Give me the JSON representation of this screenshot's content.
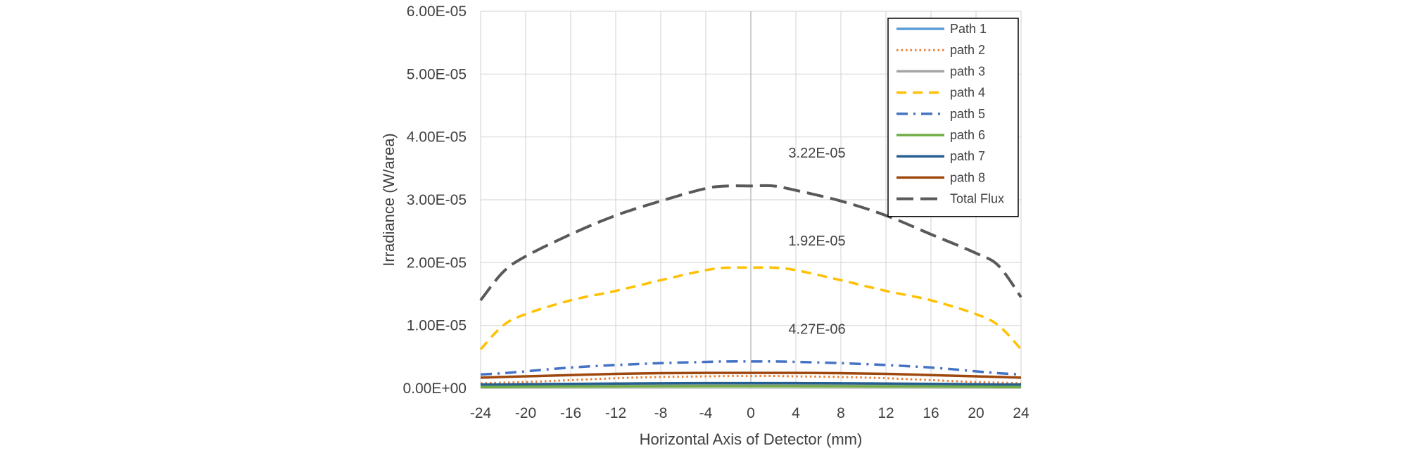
{
  "chart_data": {
    "type": "line",
    "title": "",
    "xlabel": "Horizontal Axis of Detector (mm)",
    "ylabel": "Irradiance (W/area)",
    "xlim": [
      -24,
      24
    ],
    "ylim": [
      0,
      6e-05
    ],
    "x_ticks": [
      -24,
      -20,
      -16,
      -12,
      -8,
      -4,
      0,
      4,
      8,
      12,
      16,
      20,
      24
    ],
    "x_tick_labels": [
      "-24",
      "-20",
      "-16",
      "-12",
      "-8",
      "-4",
      "0",
      "4",
      "8",
      "12",
      "16",
      "20",
      "24"
    ],
    "y_ticks": [
      0,
      1e-05,
      2e-05,
      3e-05,
      4e-05,
      5e-05,
      6e-05
    ],
    "y_tick_labels": [
      "0.00E+00",
      "1.00E-05",
      "2.00E-05",
      "3.00E-05",
      "4.00E-05",
      "5.00E-05",
      "6.00E-05"
    ],
    "grid": true,
    "legend_position": "top-right",
    "x": [
      -24,
      -22,
      -20,
      -16,
      -12,
      -8,
      -4,
      -2,
      0,
      2,
      4,
      8,
      12,
      16,
      20,
      22,
      24
    ],
    "series": [
      {
        "name": "Path 1",
        "color": "#5b9bd5",
        "style": "solid",
        "values": [
          5e-07,
          5.5e-07,
          6e-07,
          6.5e-07,
          7e-07,
          7.5e-07,
          8e-07,
          8e-07,
          8e-07,
          8e-07,
          8e-07,
          7.5e-07,
          7e-07,
          6.5e-07,
          6e-07,
          5.5e-07,
          5e-07
        ]
      },
      {
        "name": "path 2",
        "color": "#ed7d31",
        "style": "dotted",
        "values": [
          8e-07,
          9e-07,
          1e-06,
          1.3e-06,
          1.6e-06,
          1.8e-06,
          1.9e-06,
          1.95e-06,
          1.95e-06,
          1.95e-06,
          1.9e-06,
          1.8e-06,
          1.6e-06,
          1.3e-06,
          1e-06,
          9e-07,
          8e-07
        ]
      },
      {
        "name": "path 3",
        "color": "#a5a5a5",
        "style": "solid",
        "values": [
          4e-07,
          4.5e-07,
          5e-07,
          5.5e-07,
          6e-07,
          6.3e-07,
          6.5e-07,
          6.5e-07,
          6.5e-07,
          6.5e-07,
          6.5e-07,
          6.3e-07,
          6e-07,
          5.5e-07,
          5e-07,
          4.5e-07,
          4e-07
        ]
      },
      {
        "name": "path 4",
        "color": "#ffc000",
        "style": "dashed",
        "values": [
          6.2e-06,
          1e-05,
          1.18e-05,
          1.4e-05,
          1.55e-05,
          1.72e-05,
          1.88e-05,
          1.92e-05,
          1.92e-05,
          1.92e-05,
          1.88e-05,
          1.72e-05,
          1.55e-05,
          1.4e-05,
          1.18e-05,
          1e-05,
          6.2e-06
        ]
      },
      {
        "name": "path 5",
        "color": "#4472c4",
        "style": "dashdot",
        "values": [
          2.2e-06,
          2.4e-06,
          2.7e-06,
          3.3e-06,
          3.7e-06,
          4e-06,
          4.2e-06,
          4.27e-06,
          4.27e-06,
          4.27e-06,
          4.2e-06,
          4e-06,
          3.7e-06,
          3.3e-06,
          2.7e-06,
          2.4e-06,
          2.2e-06
        ]
      },
      {
        "name": "path 6",
        "color": "#70ad47",
        "style": "solid",
        "values": [
          2e-07,
          2e-07,
          2.5e-07,
          2.8e-07,
          3e-07,
          3.2e-07,
          3.3e-07,
          3.3e-07,
          3.3e-07,
          3.3e-07,
          3.3e-07,
          3.2e-07,
          3e-07,
          2.8e-07,
          2.5e-07,
          2e-07,
          2e-07
        ]
      },
      {
        "name": "path 7",
        "color": "#255e91",
        "style": "solid",
        "values": [
          6e-07,
          6e-07,
          6.5e-07,
          7e-07,
          7.5e-07,
          8e-07,
          8.2e-07,
          8.2e-07,
          8.2e-07,
          8.2e-07,
          8.2e-07,
          8e-07,
          7.5e-07,
          7e-07,
          6.5e-07,
          6e-07,
          6e-07
        ]
      },
      {
        "name": "path 8",
        "color": "#9e480e",
        "style": "solid",
        "values": [
          1.7e-06,
          1.8e-06,
          1.9e-06,
          2.1e-06,
          2.3e-06,
          2.4e-06,
          2.45e-06,
          2.45e-06,
          2.45e-06,
          2.45e-06,
          2.45e-06,
          2.4e-06,
          2.3e-06,
          2.1e-06,
          1.9e-06,
          1.8e-06,
          1.7e-06
        ]
      },
      {
        "name": "Total Flux",
        "color": "#595959",
        "style": "longdash",
        "values": [
          1.4e-05,
          1.85e-05,
          2.1e-05,
          2.45e-05,
          2.75e-05,
          2.98e-05,
          3.18e-05,
          3.22e-05,
          3.22e-05,
          3.22e-05,
          3.15e-05,
          2.98e-05,
          2.75e-05,
          2.45e-05,
          2.15e-05,
          1.95e-05,
          1.45e-05
        ]
      }
    ],
    "annotations": [
      {
        "text": "3.22E-05",
        "x": 4,
        "y": 3.67e-05
      },
      {
        "text": "1.92E-05",
        "x": 4,
        "y": 2.27e-05
      },
      {
        "text": "4.27E-06",
        "x": 4,
        "y": 8.7e-06
      }
    ]
  }
}
